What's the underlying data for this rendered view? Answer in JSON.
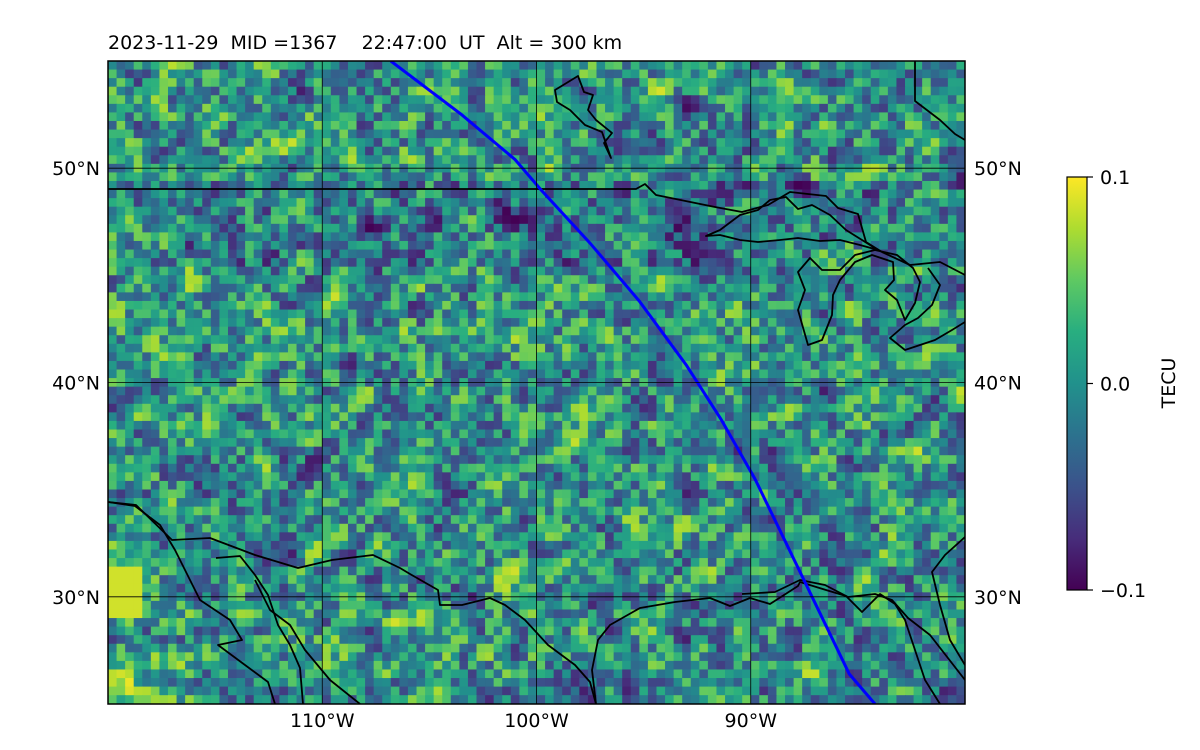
{
  "chart_data": {
    "type": "heatmap",
    "title": "2023-11-29  MID =1367    22:47:00  UT  Alt = 300 km",
    "x_tick_labels": [
      "110°W",
      "100°W",
      "90°W"
    ],
    "x_tick_values": [
      -110,
      -100,
      -90
    ],
    "y_tick_labels": [
      "30°N",
      "40°N",
      "50°N"
    ],
    "y_tick_values": [
      30,
      40,
      50
    ],
    "xlim": [
      -120,
      -80
    ],
    "ylim": [
      25,
      55
    ],
    "grid": true,
    "colormap": "viridis",
    "colorbar": {
      "label": "TECU",
      "ticks": [
        -0.1,
        0.0,
        0.1
      ],
      "tick_labels": [
        "−0.1",
        "0.0",
        "0.1"
      ],
      "range": [
        -0.1,
        0.1
      ]
    },
    "terminator_line": {
      "color": "#0000ff",
      "points": [
        [
          -106.8,
          55
        ],
        [
          -103.5,
          52.5
        ],
        [
          -101,
          50.4
        ],
        [
          -99.8,
          49
        ],
        [
          -97.5,
          46.5
        ],
        [
          -95.2,
          43.8
        ],
        [
          -93,
          40.8
        ],
        [
          -91.4,
          38.3
        ],
        [
          -89.8,
          35.5
        ],
        [
          -88.3,
          32.4
        ],
        [
          -86.8,
          29.3
        ],
        [
          -85.4,
          26.4
        ],
        [
          -84.2,
          25
        ]
      ]
    }
  }
}
